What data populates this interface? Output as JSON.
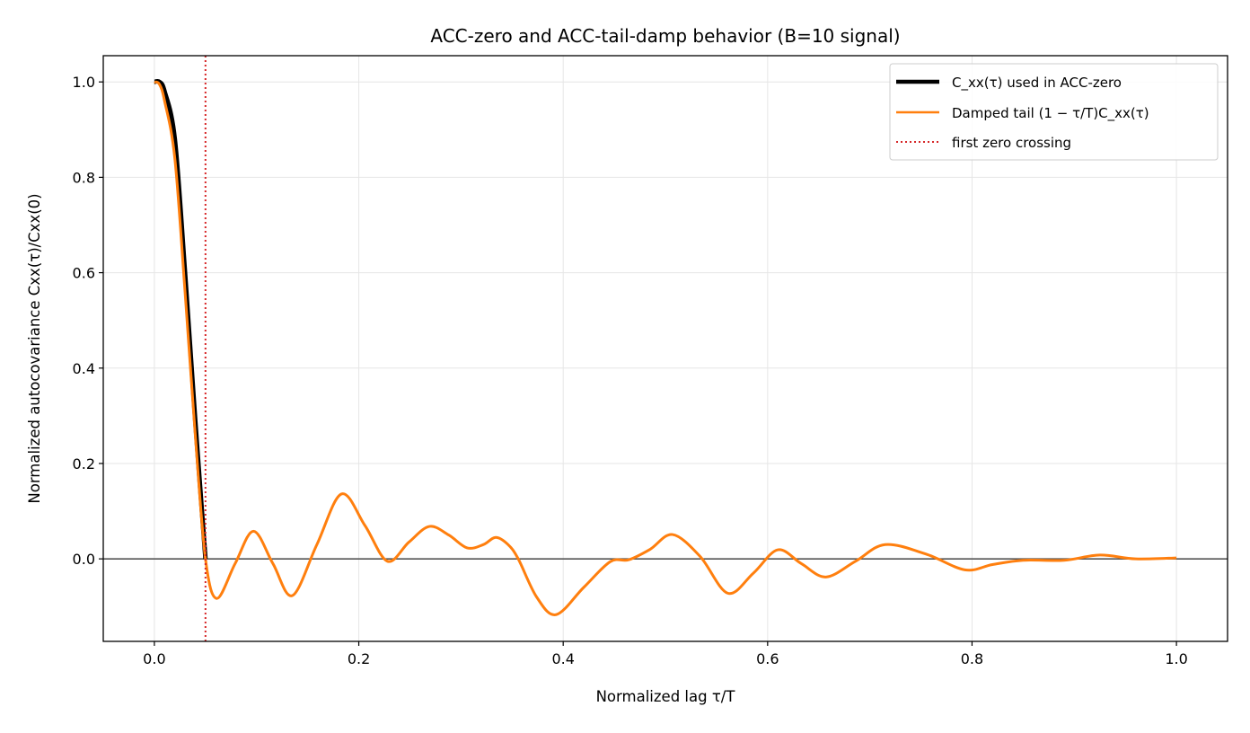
{
  "chart_data": {
    "type": "line",
    "title": "ACC-zero and ACC-tail-damp behavior (B=10 signal)",
    "xlabel": "Normalized lag τ/T",
    "ylabel": "Normalized autocovariance Cxx(τ)/Cxx(0)",
    "xlim": [
      -0.05,
      1.05
    ],
    "ylim": [
      -0.173,
      1.055
    ],
    "xticks": [
      0.0,
      0.2,
      0.4,
      0.6,
      0.8,
      1.0
    ],
    "xtick_labels": [
      "0.0",
      "0.2",
      "0.4",
      "0.6",
      "0.8",
      "1.0"
    ],
    "yticks": [
      0.0,
      0.2,
      0.4,
      0.6,
      0.8,
      1.0
    ],
    "ytick_labels": [
      "0.0",
      "0.2",
      "0.4",
      "0.6",
      "0.8",
      "1.0"
    ],
    "grid": true,
    "legend_placement": "top-right",
    "hline": {
      "y": 0,
      "color": "#555555"
    },
    "vline": {
      "x": 0.05,
      "color": "#d62728",
      "style": "dotted",
      "name": "first zero crossing"
    },
    "series": [
      {
        "name": "Cxx(τ) used in ACC-zero",
        "color": "#000000",
        "x": [
          0,
          0.005,
          0.01,
          0.02,
          0.03,
          0.04,
          0.05
        ],
        "y": [
          1.0,
          1.0,
          0.98,
          0.88,
          0.6,
          0.29,
          0.0
        ]
      },
      {
        "name": "Damped tail (1 − τ/T)Cxx(τ)",
        "color": "#ff7f0e",
        "x": [
          0,
          0.005,
          0.01,
          0.02,
          0.03,
          0.04,
          0.05,
          0.061,
          0.079,
          0.097,
          0.116,
          0.135,
          0.159,
          0.183,
          0.206,
          0.228,
          0.249,
          0.269,
          0.288,
          0.306,
          0.322,
          0.334,
          0.346,
          0.356,
          0.374,
          0.393,
          0.42,
          0.446,
          0.464,
          0.485,
          0.507,
          0.534,
          0.561,
          0.586,
          0.61,
          0.633,
          0.657,
          0.686,
          0.715,
          0.755,
          0.793,
          0.82,
          0.85,
          0.89,
          0.925,
          0.96,
          1.0
        ],
        "y": [
          1.0,
          0.995,
          0.96,
          0.84,
          0.56,
          0.26,
          0.0,
          -0.083,
          -0.01,
          0.058,
          -0.01,
          -0.077,
          0.03,
          0.136,
          0.07,
          -0.005,
          0.035,
          0.068,
          0.05,
          0.023,
          0.03,
          0.045,
          0.03,
          0.0,
          -0.08,
          -0.117,
          -0.06,
          -0.006,
          -0.002,
          0.02,
          0.051,
          0.005,
          -0.072,
          -0.03,
          0.019,
          -0.01,
          -0.038,
          -0.005,
          0.03,
          0.01,
          -0.023,
          -0.012,
          -0.003,
          -0.003,
          0.008,
          0.0,
          0.002
        ]
      }
    ],
    "legend": {
      "entries": [
        {
          "label": "C_xx(τ) used in ACC-zero"
        },
        {
          "label": "Damped tail (1 − τ/T)C_xx(τ)"
        },
        {
          "label": "first zero crossing"
        }
      ]
    }
  }
}
